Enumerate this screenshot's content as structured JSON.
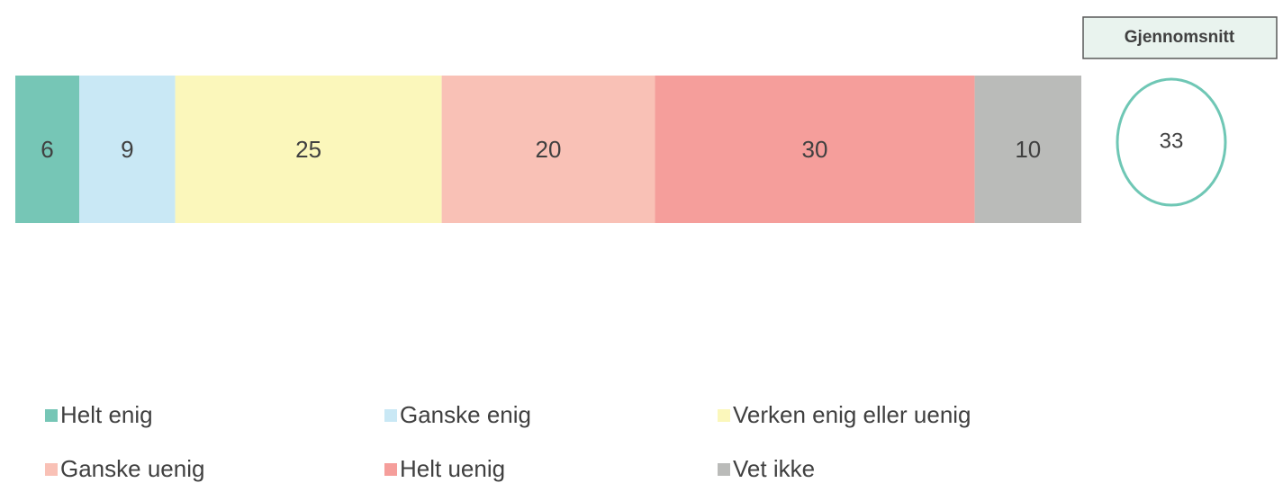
{
  "chart_data": {
    "type": "bar",
    "orientation": "horizontal",
    "stacked": true,
    "xlim": [
      0,
      100
    ],
    "series": [
      {
        "name": "Helt enig",
        "color": "#76c6b6",
        "values": [
          6
        ]
      },
      {
        "name": "Ganske enig",
        "color": "#c9e8f5",
        "values": [
          9
        ]
      },
      {
        "name": "Verken enig eller uenig",
        "color": "#fbf7bb",
        "values": [
          25
        ]
      },
      {
        "name": "Ganske uenig",
        "color": "#f9c1b6",
        "values": [
          20
        ]
      },
      {
        "name": "Helt uenig",
        "color": "#f59e9b",
        "values": [
          30
        ]
      },
      {
        "name": "Vet ikke",
        "color": "#babbb9",
        "values": [
          10
        ]
      }
    ],
    "average": {
      "label": "Gjennomsnitt",
      "value": 33,
      "color": "#6fc7b5"
    }
  }
}
